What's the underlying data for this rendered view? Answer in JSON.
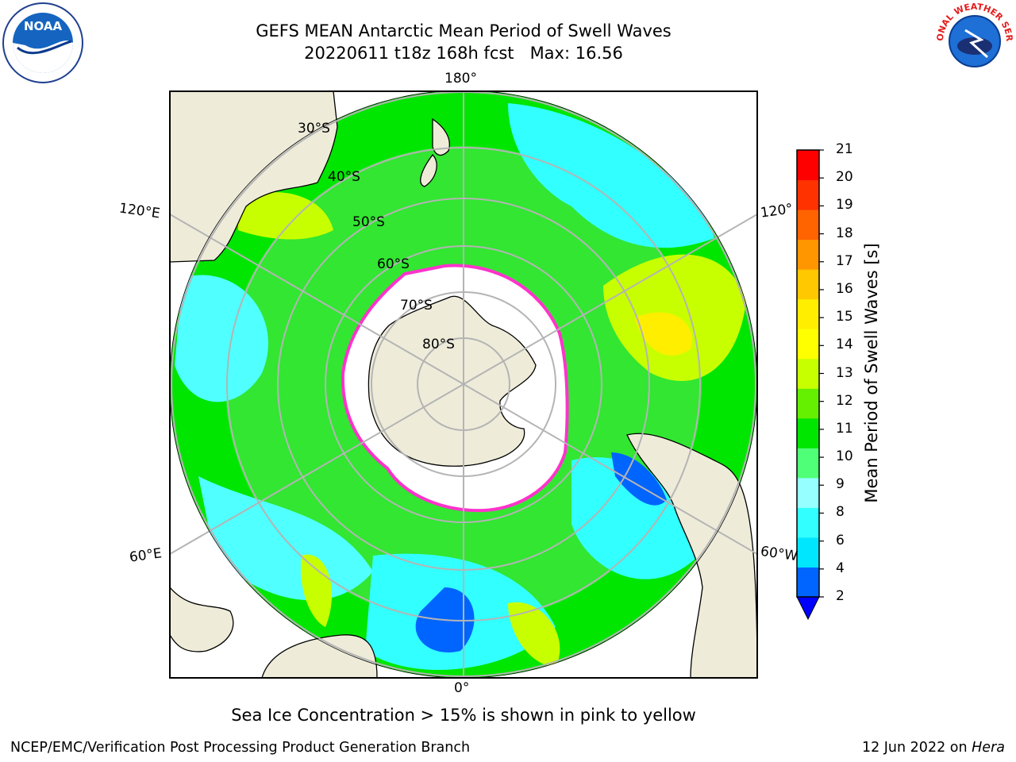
{
  "title": {
    "line1": "GEFS MEAN Antarctic Mean Period of Swell Waves",
    "line2": "20220611 t18z 168h fcst   Max: 16.56"
  },
  "map": {
    "projection": "south polar stereographic",
    "longitude_labels": {
      "top": "180°",
      "upper_left": "120°E",
      "upper_right": "120°",
      "lower_left": "60°E",
      "lower_right": "60°W",
      "bottom": "0°"
    },
    "latitude_labels": [
      "30°S",
      "40°S",
      "50°S",
      "60°S",
      "70°S",
      "80°S"
    ],
    "land_color": "#eeecd9",
    "ice_edge_color": "#ff33cc",
    "grid_color": "#b4b4b4"
  },
  "colorbar": {
    "label": "Mean Period of Swell Waves [s]",
    "ticks": [
      "21",
      "20",
      "19",
      "18",
      "17",
      "16",
      "15",
      "14",
      "13",
      "12",
      "11",
      "10",
      "9",
      "8",
      "6",
      "4",
      "2"
    ],
    "colors_bottom_to_top": [
      "#0064ff",
      "#00e6ff",
      "#32ffff",
      "#96ffff",
      "#50ff78",
      "#00e600",
      "#64f000",
      "#c8ff00",
      "#ffff00",
      "#ffee00",
      "#ffc800",
      "#ff9600",
      "#ff6400",
      "#ff3200",
      "#ff0000"
    ],
    "extend_color": "#0000ff"
  },
  "note": "Sea Ice Concentration > 15% is shown in pink to yellow",
  "footer": {
    "credit": "NCEP/EMC/Verification Post Processing Product Generation Branch",
    "date_prefix": "12 Jun 2022 on ",
    "date_host": "Hera"
  },
  "logos": {
    "left": "NOAA",
    "right_text": "NATIONAL WEATHER SERVICE"
  }
}
